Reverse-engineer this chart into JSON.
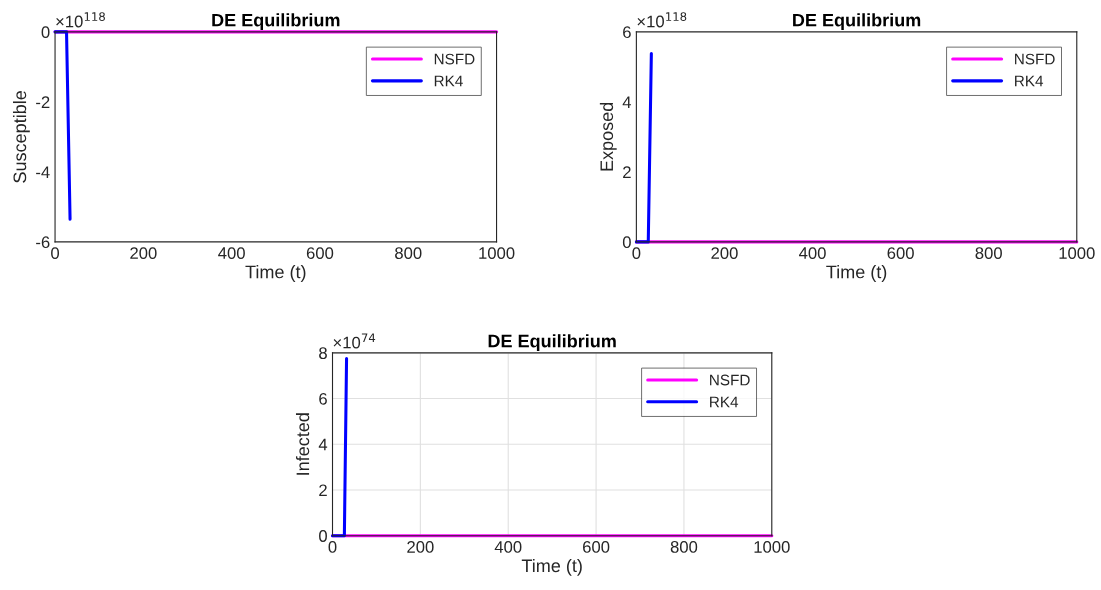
{
  "chart_data": [
    {
      "type": "line",
      "title": "DE Equilibrium",
      "xlabel": "Time (t)",
      "ylabel": "Susceptible",
      "xlim": [
        0,
        1000
      ],
      "xticks": [
        0,
        200,
        400,
        600,
        800,
        1000
      ],
      "ylim": [
        -6,
        0
      ],
      "yticks": [
        -6,
        -4,
        -2,
        0
      ],
      "grid": false,
      "legend": "top right",
      "annotations": [
        "×10$^{118}$"
      ],
      "series": [
        {
          "name": "NSFD",
          "color": "#ff00ff",
          "x": [
            0,
            1000
          ],
          "values": [
            0,
            0
          ]
        },
        {
          "name": "RK4",
          "color": "#0000ff",
          "x": [
            0,
            26,
            34
          ],
          "values": [
            0,
            0,
            -5.35
          ]
        }
      ]
    },
    {
      "type": "line",
      "title": "DE Equilibrium",
      "xlabel": "Time (t)",
      "ylabel": "Exposed",
      "xlim": [
        0,
        1000
      ],
      "xticks": [
        0,
        200,
        400,
        600,
        800,
        1000
      ],
      "ylim": [
        0,
        6
      ],
      "yticks": [
        0,
        2,
        4,
        6
      ],
      "grid": false,
      "legend": "top right",
      "annotations": [
        "×10$^{118}$"
      ],
      "series": [
        {
          "name": "NSFD",
          "color": "#ff00ff",
          "x": [
            0,
            1000
          ],
          "values": [
            0,
            0
          ]
        },
        {
          "name": "RK4",
          "color": "#0000ff",
          "x": [
            0,
            27,
            34
          ],
          "values": [
            0,
            0,
            5.38
          ]
        }
      ]
    },
    {
      "type": "line",
      "title": "DE Equilibrium",
      "xlabel": "Time (t)",
      "ylabel": "Infected",
      "xlim": [
        0,
        1000
      ],
      "xticks": [
        0,
        200,
        400,
        600,
        800,
        1000
      ],
      "ylim": [
        0,
        8
      ],
      "yticks": [
        0,
        2,
        4,
        6,
        8
      ],
      "grid": true,
      "legend": "top right",
      "annotations": [
        "×10$^{74}$"
      ],
      "series": [
        {
          "name": "NSFD",
          "color": "#ff00ff",
          "x": [
            0,
            1000
          ],
          "values": [
            0,
            0
          ]
        },
        {
          "name": "RK4",
          "color": "#0000ff",
          "x": [
            0,
            27,
            32
          ],
          "values": [
            0,
            0,
            7.75
          ]
        }
      ]
    }
  ]
}
